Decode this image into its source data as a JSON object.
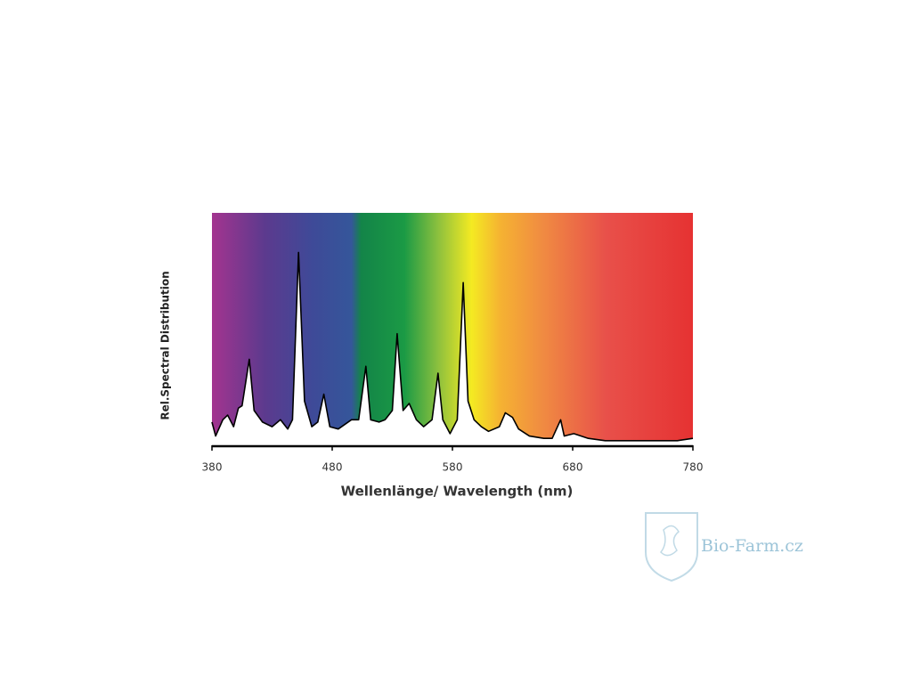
{
  "chart_data": {
    "type": "line",
    "x_label": "Wellenlänge/ Wavelength (nm)",
    "y_label": "Rel.Spectral Distribution",
    "x": [
      380,
      383,
      389,
      393,
      398,
      402,
      405,
      411,
      415,
      422,
      430,
      437,
      443,
      447,
      452,
      457,
      463,
      468,
      473,
      478,
      485,
      496,
      502,
      508,
      512,
      519,
      524,
      530,
      534,
      539,
      544,
      550,
      556,
      563,
      568,
      572,
      578,
      584,
      589,
      593,
      598,
      604,
      610,
      619,
      624,
      630,
      635,
      644,
      656,
      663,
      670,
      673,
      681,
      693,
      707,
      722,
      737,
      752,
      767,
      780
    ],
    "series": [
      {
        "color": "#000000",
        "values": [
          10,
          4,
          11,
          13,
          8,
          16,
          17,
          37,
          15,
          10,
          8,
          11,
          7,
          11,
          83,
          19,
          8,
          10,
          22,
          8,
          7,
          11,
          11,
          34,
          11,
          10,
          11,
          15,
          48,
          15,
          18,
          11,
          8,
          11,
          31,
          11,
          5,
          11,
          70,
          19,
          11,
          8,
          6,
          8,
          14,
          12,
          7,
          4,
          3,
          3,
          11,
          4,
          5,
          3,
          2,
          2,
          2,
          2,
          2,
          3
        ]
      }
    ],
    "xlim": [
      380,
      780
    ],
    "xticks": [
      380,
      480,
      580,
      680,
      780
    ],
    "ylim": [
      0,
      100
    ]
  },
  "watermark": "Bio-Farm.cz"
}
